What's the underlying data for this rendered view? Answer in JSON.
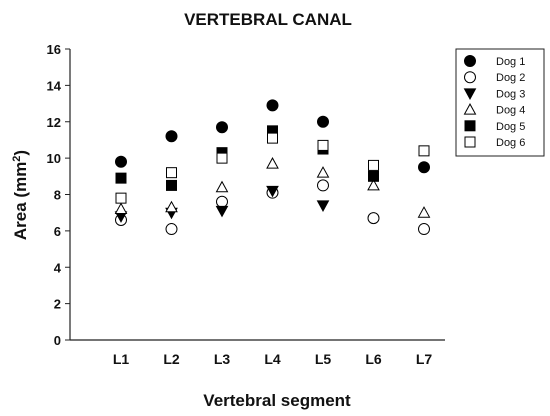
{
  "chart_data": {
    "type": "scatter",
    "title": "VERTEBRAL CANAL",
    "xlabel": "Vertebral segment",
    "ylabel": "Area (mm²)",
    "ylabel_main": "Area (mm",
    "ylabel_sup": "2",
    "ylabel_end": ")",
    "categories": [
      "L1",
      "L2",
      "L3",
      "L4",
      "L5",
      "L6",
      "L7"
    ],
    "ylim": [
      0,
      16
    ],
    "yticks": [
      0,
      2,
      4,
      6,
      8,
      10,
      12,
      14,
      16
    ],
    "grid": false,
    "legend_position": "top-right",
    "series": [
      {
        "name": "Dog 1",
        "marker": "circle-filled",
        "values": [
          9.8,
          11.2,
          11.7,
          12.9,
          12.0,
          null,
          9.5
        ]
      },
      {
        "name": "Dog 2",
        "marker": "circle-open",
        "values": [
          6.6,
          6.1,
          7.6,
          8.1,
          8.5,
          6.7,
          6.1
        ]
      },
      {
        "name": "Dog 3",
        "marker": "triangle-down-filled",
        "values": [
          6.8,
          7.0,
          7.1,
          8.2,
          7.4,
          null,
          null
        ]
      },
      {
        "name": "Dog 4",
        "marker": "triangle-up-open",
        "values": [
          7.2,
          7.3,
          8.4,
          9.7,
          9.2,
          8.5,
          7.0
        ]
      },
      {
        "name": "Dog 5",
        "marker": "square-filled",
        "values": [
          8.9,
          8.5,
          10.3,
          11.5,
          10.5,
          9.0,
          null
        ]
      },
      {
        "name": "Dog 6",
        "marker": "square-open",
        "values": [
          7.8,
          9.2,
          10.0,
          11.1,
          10.7,
          9.6,
          10.4
        ]
      }
    ]
  }
}
